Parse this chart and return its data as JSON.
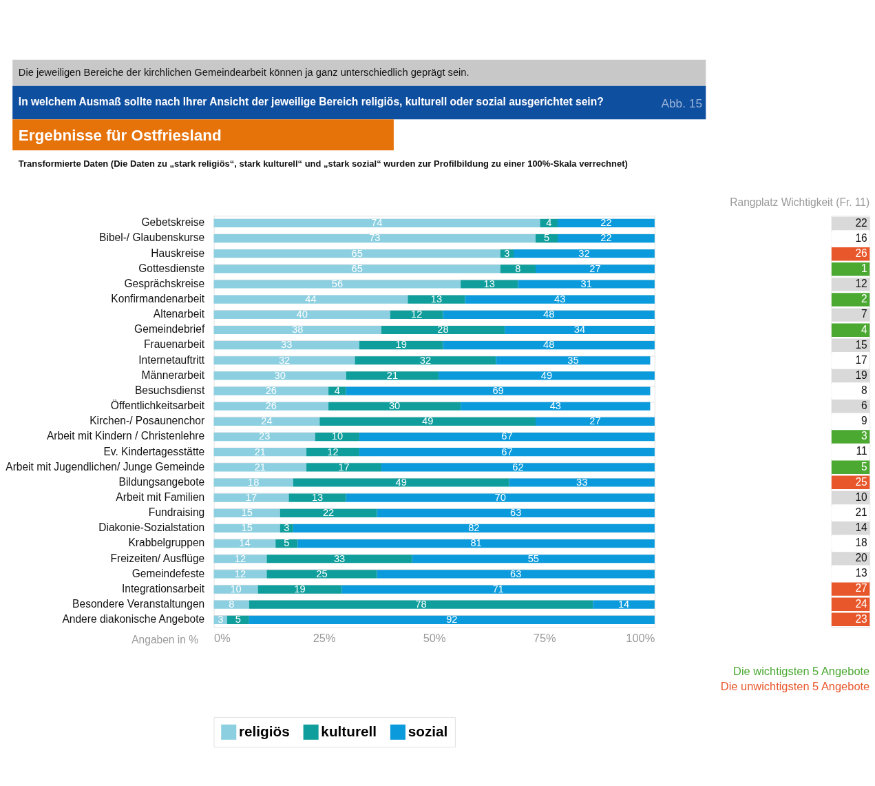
{
  "chart_data": [
    {
      "type": "bar",
      "orientation": "horizontal",
      "stacked": true,
      "data_labels": true,
      "legend": "bottom",
      "grid": "y",
      "title": "In welchem Ausmaß sollte nach Ihrer Ansicht der jeweilige Bereich religiös, kulturell oder sozial ausgerichtet sein?",
      "subtitle": "Transformierte Daten (Die Daten zu „stark religiös“, stark kulturell“ und „stark sozial“ wurden zur Profilbildung zu einer 100%-Skala verrechnet)",
      "annotations": [
        "Die jeweiligen Bereiche der kirchlichen Gemeindearbeit können ja ganz unterschiedlich geprägt sein.",
        "Abb. 15",
        "Ergebnisse für Ostfriesland",
        "Angaben in %"
      ],
      "categories": [
        "Gebetskreise",
        "Bibel-/ Glaubenskurse",
        "Hauskreise",
        "Gottesdienste",
        "Gesprächskreise",
        "Konfirmandenarbeit",
        "Altenarbeit",
        "Gemeindebrief",
        "Frauenarbeit",
        "Internetauftritt",
        "Männerarbeit",
        "Besuchsdienst",
        "Öffentlichkeitsarbeit",
        "Kirchen-/ Posaunenchor",
        "Arbeit mit Kindern / Christenlehre",
        "Ev. Kindertagesstätte",
        "Arbeit mit Jugendlichen/ Junge Gemeinde",
        "Bildungsangebote",
        "Arbeit mit Familien",
        "Fundraising",
        "Diakonie-Sozialstation",
        "Krabbelgruppen",
        "Freizeiten/ Ausflüge",
        "Gemeindefeste",
        "Integrationsarbeit",
        "Besondere Veranstaltungen",
        "Andere diakonische Angebote"
      ],
      "series": [
        {
          "name": "religiös",
          "color": "#8ccfe0",
          "values": [
            74,
            73,
            65,
            65,
            56,
            44,
            40,
            38,
            33,
            32,
            30,
            26,
            26,
            24,
            23,
            21,
            21,
            18,
            17,
            15,
            15,
            14,
            12,
            12,
            10,
            8,
            3
          ]
        },
        {
          "name": "kulturell",
          "color": "#0f9e9c",
          "values": [
            4,
            5,
            3,
            8,
            13,
            13,
            12,
            28,
            19,
            32,
            21,
            4,
            30,
            49,
            10,
            12,
            17,
            49,
            13,
            22,
            3,
            5,
            33,
            25,
            19,
            78,
            5
          ]
        },
        {
          "name": "sozial",
          "color": "#0b9bdc",
          "values": [
            22,
            22,
            32,
            27,
            31,
            43,
            48,
            34,
            48,
            35,
            49,
            69,
            43,
            27,
            67,
            67,
            62,
            33,
            70,
            63,
            82,
            81,
            55,
            63,
            71,
            14,
            92
          ]
        }
      ],
      "xlim": [
        0,
        100
      ],
      "xticks": [
        {
          "value": 0,
          "label": "0%"
        },
        {
          "value": 25,
          "label": "25%"
        },
        {
          "value": 50,
          "label": "50%"
        },
        {
          "value": 75,
          "label": "75%"
        },
        {
          "value": 100,
          "label": "100%"
        }
      ]
    },
    {
      "type": "other",
      "data_labels": true,
      "title": "Rangplatz Wichtigkeit (Fr. 11)",
      "categories": [
        null,
        null,
        null,
        null,
        null,
        null,
        null,
        null,
        null,
        null,
        null,
        null,
        null,
        null,
        null,
        null,
        null,
        null,
        null,
        null,
        null,
        null,
        null,
        null,
        null,
        null,
        null
      ],
      "values": [
        22,
        16,
        26,
        1,
        12,
        2,
        7,
        4,
        15,
        17,
        19,
        8,
        6,
        9,
        3,
        11,
        5,
        25,
        10,
        21,
        14,
        18,
        20,
        13,
        27,
        24,
        23
      ],
      "colors": [
        "#d9d9d9",
        "#ffffff",
        "#e8572b",
        "#4ba932",
        "#d9d9d9",
        "#4ba932",
        "#d9d9d9",
        "#4ba932",
        "#d9d9d9",
        "#ffffff",
        "#d9d9d9",
        "#ffffff",
        "#d9d9d9",
        "#ffffff",
        "#4ba932",
        "#ffffff",
        "#4ba932",
        "#e8572b",
        "#d9d9d9",
        "#ffffff",
        "#d9d9d9",
        "#ffffff",
        "#d9d9d9",
        "#ffffff",
        "#e8572b",
        "#e8572b",
        "#e8572b"
      ],
      "annotations": [
        "Die wichtigsten 5 Angebote",
        "Die unwichtigsten 5 Angebote"
      ]
    }
  ]
}
